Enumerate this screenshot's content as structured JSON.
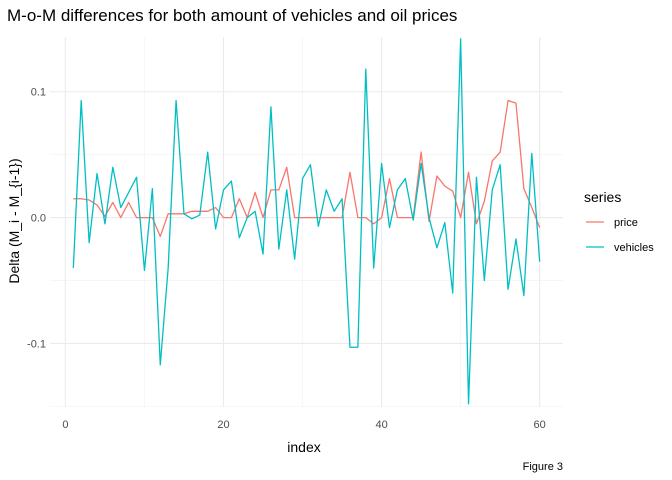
{
  "chart_data": {
    "type": "line",
    "title": "M-o-M differences for both amount of vehicles and oil prices",
    "xlabel": "index",
    "ylabel": "Delta (M_i - M_{i-1})",
    "caption": "Figure 3",
    "xlim": [
      -1.95,
      62.95
    ],
    "ylim": [
      -0.1505,
      0.1435
    ],
    "x_ticks": [
      0,
      20,
      40,
      60
    ],
    "x_tick_labels": [
      "0",
      "20",
      "40",
      "60"
    ],
    "y_ticks": [
      -0.1,
      0.0,
      0.1
    ],
    "y_tick_labels": [
      "-0.1",
      "0.0",
      "0.1"
    ],
    "grid": true,
    "legend": {
      "title": "series",
      "placement": "right"
    },
    "x": [
      1,
      2,
      3,
      4,
      5,
      6,
      7,
      8,
      9,
      10,
      11,
      12,
      13,
      14,
      15,
      16,
      17,
      18,
      19,
      20,
      21,
      22,
      23,
      24,
      25,
      26,
      27,
      28,
      29,
      30,
      31,
      32,
      33,
      34,
      35,
      36,
      37,
      38,
      39,
      40,
      41,
      42,
      43,
      44,
      45,
      46,
      47,
      48,
      49,
      50,
      51,
      52,
      53,
      54,
      55,
      56,
      57,
      58,
      59,
      60
    ],
    "series": [
      {
        "name": "price",
        "color": "#F8766D",
        "values": [
          0.015,
          0.015,
          0.014,
          0.01,
          0.001,
          0.012,
          0.0,
          0.012,
          0.0,
          0.0,
          0.0,
          -0.015,
          0.003,
          0.003,
          0.003,
          0.005,
          0.005,
          0.005,
          0.008,
          0.0,
          0.0,
          0.015,
          0.0,
          0.02,
          0.0,
          0.022,
          0.022,
          0.04,
          0.0,
          0.0,
          0.0,
          0.0,
          0.0,
          0.0,
          0.0,
          0.036,
          0.0,
          0.0,
          -0.005,
          0.0,
          0.031,
          0.0,
          0.0,
          0.0,
          0.052,
          -0.003,
          0.033,
          0.025,
          0.021,
          0.0,
          0.036,
          -0.005,
          0.013,
          0.045,
          0.052,
          0.093,
          0.091,
          0.023,
          0.008,
          -0.008
        ]
      },
      {
        "name": "vehicles",
        "color": "#00BFC4",
        "values": [
          -0.04,
          0.093,
          -0.02,
          0.035,
          -0.005,
          0.04,
          0.008,
          0.02,
          0.032,
          -0.042,
          0.023,
          -0.117,
          -0.04,
          0.093,
          0.003,
          -0.001,
          0.002,
          0.052,
          -0.009,
          0.022,
          0.029,
          -0.016,
          0.0,
          0.005,
          -0.029,
          0.088,
          -0.025,
          0.022,
          -0.033,
          0.031,
          0.042,
          -0.007,
          0.022,
          0.005,
          0.015,
          -0.103,
          -0.103,
          0.118,
          -0.04,
          0.043,
          -0.008,
          0.022,
          0.031,
          -0.002,
          0.043,
          0.0,
          -0.024,
          -0.004,
          -0.06,
          0.142,
          -0.148,
          0.032,
          -0.05,
          0.022,
          0.042,
          -0.057,
          -0.017,
          -0.062,
          0.051,
          -0.035
        ]
      }
    ]
  }
}
